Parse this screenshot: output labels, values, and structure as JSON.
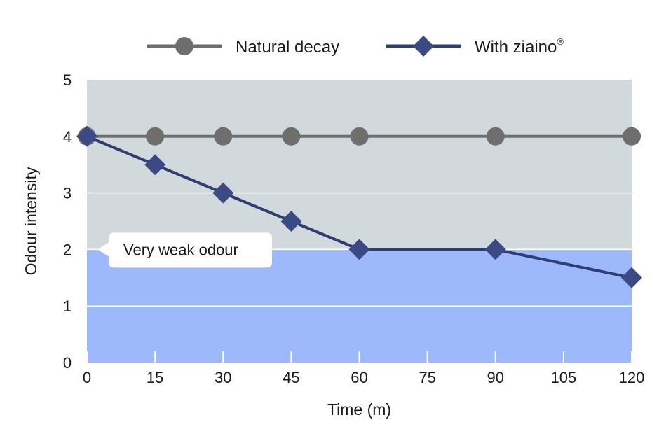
{
  "chart_data": {
    "type": "line",
    "xlabel": "Time (m)",
    "ylabel": "Odour intensity",
    "x_ticks": [
      0,
      15,
      30,
      45,
      60,
      75,
      90,
      105,
      120
    ],
    "y_ticks": [
      0,
      1,
      2,
      3,
      4,
      5
    ],
    "xlim": [
      0,
      120
    ],
    "ylim": [
      0,
      5
    ],
    "grid": true,
    "legend_position": "top",
    "series": [
      {
        "name": "Natural decay",
        "color": "#6e6e6e",
        "marker": "circle",
        "marker_color": "#6e6e6e",
        "x": [
          0,
          15,
          30,
          45,
          60,
          90,
          120
        ],
        "y": [
          4,
          4,
          4,
          4,
          4,
          4,
          4
        ]
      },
      {
        "name": "With ziaino",
        "name_mark": "®",
        "color": "#2e3d74",
        "marker": "diamond",
        "marker_color": "#3b4a85",
        "x": [
          0,
          15,
          30,
          45,
          60,
          90,
          120
        ],
        "y": [
          4,
          3.5,
          3,
          2.5,
          2,
          2,
          1.5
        ]
      }
    ],
    "bands": [
      {
        "from": 2,
        "to": 5,
        "color": "#d1d9dc"
      },
      {
        "from": 0,
        "to": 2,
        "color": "#9db8fb"
      }
    ],
    "annotation": {
      "text": "Very weak odour",
      "y": 2
    }
  }
}
